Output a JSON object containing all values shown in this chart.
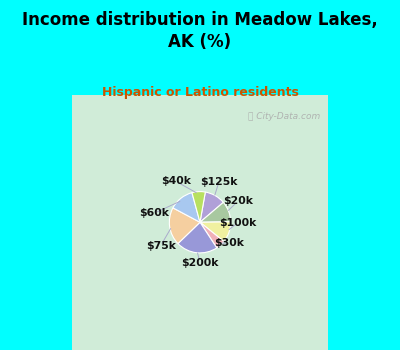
{
  "title": "Income distribution in Meadow Lakes,\nAK (%)",
  "subtitle": "Hispanic or Latino residents",
  "title_color": "#000000",
  "subtitle_color": "#cc5500",
  "background_top": "#00ffff",
  "background_chart_top": "#d8f0e8",
  "background_chart_bottom": "#c8e8d8",
  "watermark": "ⓘ City-Data.com",
  "labels": [
    "$125k",
    "$20k",
    "$100k",
    "$30k",
    "$200k",
    "$75k",
    "$60k",
    "$40k"
  ],
  "sizes": [
    11,
    11,
    11,
    5,
    22,
    20,
    13,
    7
  ],
  "colors": [
    "#b0a0d8",
    "#a8c8a0",
    "#f0f0a0",
    "#f0b0b8",
    "#9898d8",
    "#f5cfa0",
    "#a8c8f0",
    "#b8e060"
  ],
  "startangle": 80
}
